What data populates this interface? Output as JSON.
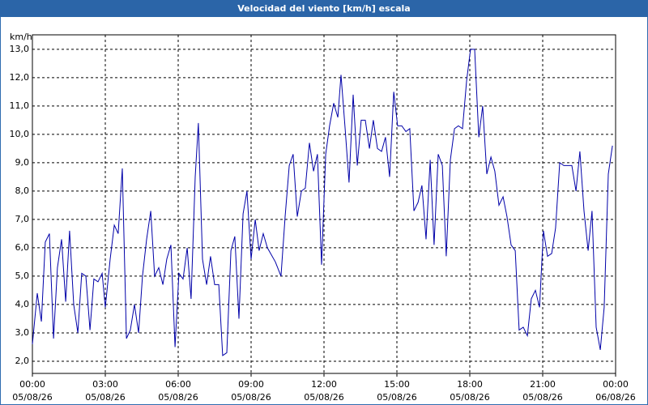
{
  "chart_data": {
    "type": "line",
    "title": "Velocidad del viento [km/h] escala",
    "ylabel": "km/h",
    "series": [
      {
        "name": "Velocidad del viento",
        "color": "#0000a8",
        "x": [
          0,
          0.2,
          0.37,
          0.53,
          0.7,
          0.87,
          1.03,
          1.2,
          1.37,
          1.53,
          1.7,
          1.87,
          2.03,
          2.2,
          2.37,
          2.53,
          2.7,
          2.87,
          3,
          3.2,
          3.37,
          3.53,
          3.7,
          3.87,
          4.03,
          4.2,
          4.37,
          4.53,
          4.7,
          4.87,
          5.03,
          5.2,
          5.37,
          5.53,
          5.7,
          5.87,
          6.03,
          6.2,
          6.37,
          6.53,
          6.7,
          6.83,
          7,
          7.17,
          7.33,
          7.5,
          7.67,
          7.83,
          8,
          8.17,
          8.33,
          8.5,
          8.67,
          8.83,
          9,
          9.17,
          9.33,
          9.5,
          9.67,
          10,
          10.23,
          10.4,
          10.57,
          10.73,
          10.9,
          11.07,
          11.23,
          11.4,
          11.57,
          11.73,
          11.9,
          12.07,
          12.23,
          12.4,
          12.57,
          12.7,
          12.87,
          13.03,
          13.2,
          13.37,
          13.53,
          13.7,
          13.87,
          14.03,
          14.2,
          14.37,
          14.53,
          14.7,
          14.87,
          15.03,
          15.2,
          15.37,
          15.53,
          15.7,
          15.87,
          16.03,
          16.2,
          16.37,
          16.53,
          16.7,
          16.87,
          17.03,
          17.2,
          17.37,
          17.53,
          17.7,
          17.87,
          18.03,
          18.2,
          18.37,
          18.53,
          18.7,
          18.87,
          19.03,
          19.2,
          19.37,
          19.53,
          19.7,
          19.87,
          20.03,
          20.2,
          20.37,
          20.53,
          20.7,
          20.87,
          21.03,
          21.2,
          21.37,
          21.53,
          21.7,
          21.87,
          22.03,
          22.2,
          22.37,
          22.53,
          22.7,
          22.87,
          23.03,
          23.2,
          23.37,
          23.53,
          23.7,
          23.87
        ],
        "values": [
          2.6,
          4.4,
          3.4,
          6.2,
          6.5,
          2.8,
          5.3,
          6.3,
          4.1,
          6.6,
          4.0,
          3.0,
          5.1,
          5.0,
          3.1,
          4.9,
          4.8,
          5.1,
          3.9,
          5.6,
          6.8,
          6.5,
          8.8,
          2.8,
          3.1,
          4.0,
          3.0,
          5.0,
          6.3,
          7.3,
          5.0,
          5.3,
          4.7,
          5.6,
          6.1,
          2.5,
          5.1,
          4.9,
          6.0,
          4.2,
          8.5,
          10.4,
          5.6,
          4.7,
          5.7,
          4.7,
          4.7,
          2.2,
          2.3,
          5.9,
          6.4,
          3.5,
          7.2,
          8.0,
          5.6,
          7.0,
          5.9,
          6.5,
          6.0,
          5.5,
          5.0,
          7.1,
          8.9,
          9.3,
          7.1,
          8.0,
          8.1,
          9.7,
          8.7,
          9.3,
          5.4,
          9.3,
          10.3,
          11.1,
          10.6,
          12.1,
          10.2,
          8.3,
          11.4,
          8.9,
          10.5,
          10.5,
          9.5,
          10.5,
          9.5,
          9.4,
          9.9,
          8.5,
          11.5,
          10.3,
          10.3,
          10.1,
          10.2,
          7.3,
          7.6,
          8.2,
          6.3,
          9.1,
          6.1,
          9.3,
          8.9,
          5.7,
          9.1,
          10.2,
          10.3,
          10.2,
          11.9,
          13.0,
          13.0,
          9.9,
          11.0,
          8.6,
          9.2,
          8.7,
          7.5,
          7.8,
          7.1,
          6.1,
          5.9,
          3.1,
          3.2,
          2.9,
          4.2,
          4.5,
          3.9,
          6.6,
          5.7,
          5.8,
          6.7,
          9.0,
          8.9,
          8.9,
          8.9,
          8.0,
          9.4,
          7.3,
          5.9,
          7.3,
          3.2,
          2.4,
          3.9,
          8.6,
          9.6
        ]
      }
    ],
    "xlim": [
      0,
      24
    ],
    "xticks": [
      {
        "value": 0,
        "label": [
          "00:00",
          "05/08/26"
        ]
      },
      {
        "value": 3,
        "label": [
          "03:00",
          "05/08/26"
        ]
      },
      {
        "value": 6,
        "label": [
          "06:00",
          "05/08/26"
        ]
      },
      {
        "value": 9,
        "label": [
          "09:00",
          "05/08/26"
        ]
      },
      {
        "value": 12,
        "label": [
          "12:00",
          "05/08/26"
        ]
      },
      {
        "value": 15,
        "label": [
          "15:00",
          "05/08/26"
        ]
      },
      {
        "value": 18,
        "label": [
          "18:00",
          "05/08/26"
        ]
      },
      {
        "value": 21,
        "label": [
          "21:00",
          "05/08/26"
        ]
      },
      {
        "value": 24,
        "label": [
          "00:00",
          "06/08/26"
        ]
      }
    ],
    "ylim": [
      1.57,
      13.51
    ],
    "yticks": [
      {
        "value": 2,
        "label": "2,0"
      },
      {
        "value": 3,
        "label": "3,0"
      },
      {
        "value": 4,
        "label": "4,0"
      },
      {
        "value": 5,
        "label": "5,0"
      },
      {
        "value": 6,
        "label": "6,0"
      },
      {
        "value": 7,
        "label": "7,0"
      },
      {
        "value": 8,
        "label": "8,0"
      },
      {
        "value": 9,
        "label": "9,0"
      },
      {
        "value": 10,
        "label": "10,0"
      },
      {
        "value": 11,
        "label": "11,0"
      },
      {
        "value": 12,
        "label": "12,0"
      },
      {
        "value": 13,
        "label": "13,0"
      }
    ],
    "grid": true
  }
}
